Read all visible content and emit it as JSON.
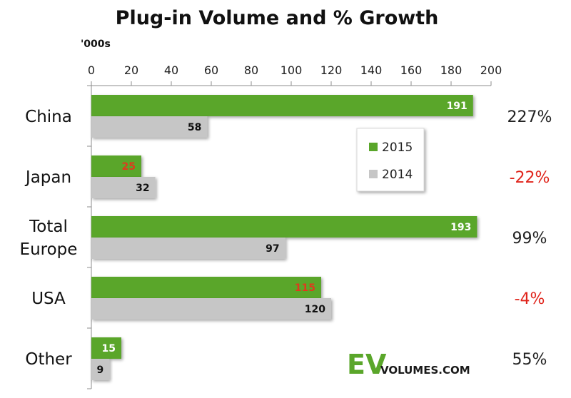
{
  "chart_data": {
    "type": "bar",
    "orientation": "horizontal",
    "title": "Plug-in Volume and % Growth",
    "unit_label": "'000s",
    "categories": [
      [
        "China"
      ],
      [
        "Japan"
      ],
      [
        "Total",
        "Europe"
      ],
      [
        "USA"
      ],
      [
        "Other"
      ]
    ],
    "series": [
      {
        "name": "2015",
        "values": [
          191,
          25,
          193,
          115,
          15
        ],
        "color": "#5aa62a"
      },
      {
        "name": "2014",
        "values": [
          58,
          32,
          97,
          120,
          9
        ],
        "color": "#c6c6c6"
      }
    ],
    "value_label_colors": {
      "2015": [
        "#ffffff",
        "#e03a1e",
        "#ffffff",
        "#e03a1e",
        "#ffffff"
      ],
      "2014": [
        "#111111",
        "#111111",
        "#111111",
        "#111111",
        "#111111"
      ]
    },
    "growth": [
      "227%",
      "-22%",
      "99%",
      "-4%",
      "55%"
    ],
    "growth_colors": [
      "#222222",
      "#e0241b",
      "#222222",
      "#e0241b",
      "#222222"
    ],
    "xlim": [
      0,
      200
    ],
    "xticks": [
      0,
      20,
      40,
      60,
      80,
      100,
      120,
      140,
      160,
      180,
      200
    ],
    "x_axis_position": "top",
    "grid": false,
    "legend_position": "center-right"
  },
  "logo": {
    "ev": "EV",
    "volumes": "VOLUMES.COM"
  }
}
